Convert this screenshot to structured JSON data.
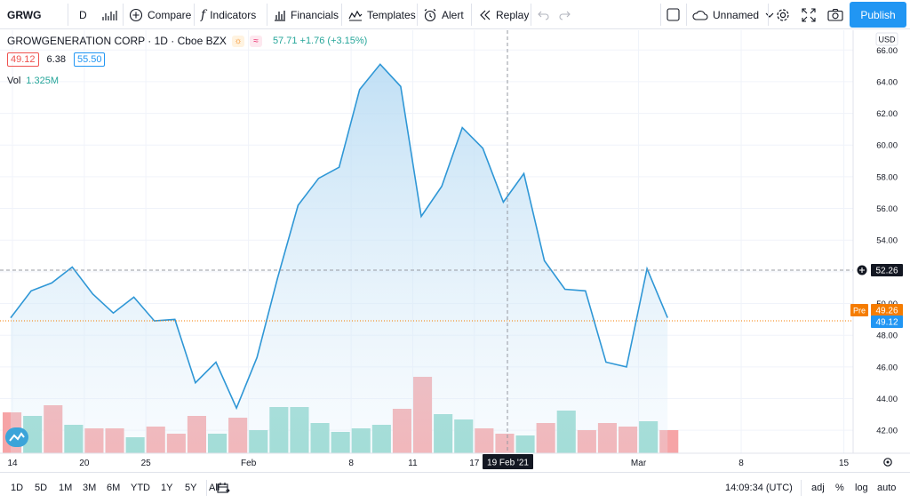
{
  "toolbar": {
    "symbol": "GRWG",
    "interval": "D",
    "compare": "Compare",
    "indicators": "Indicators",
    "financials": "Financials",
    "templates": "Templates",
    "alert": "Alert",
    "replay": "Replay",
    "layout_name": "Unnamed",
    "publish": "Publish"
  },
  "legend": {
    "title": "GROWGENERATION CORP · 1D · Cboe BZX",
    "sun_badge": "☼",
    "wave_badge": "≈",
    "price": "57.71 +1.76 (+3.15%)",
    "bid": "49.12",
    "spread": "6.38",
    "ask": "55.50",
    "vol_label": "Vol",
    "vol_value": "1.325M"
  },
  "colors": {
    "line": "#2f97d6",
    "area_top": "#cfe6f7",
    "vol_up": "#8ed6cb",
    "vol_down": "#f6a4a6",
    "crosshair_label": "#131722",
    "pre_label": "#f57c00",
    "last_label": "#2196f3"
  },
  "axis": {
    "currency": "USD",
    "crosshair_price": "52.26",
    "pre_label": "Pre",
    "pre_price": "49.26",
    "last_price": "49.12",
    "crosshair_date": "19 Feb '21"
  },
  "chart_data": {
    "type": "line",
    "title": "",
    "ylim": [
      41,
      66.8
    ],
    "y_ticks": [
      42,
      44,
      46,
      48,
      50,
      52,
      54,
      56,
      58,
      60,
      62,
      64,
      66
    ],
    "x_tick_labels": [
      {
        "label": "14",
        "bar": 0
      },
      {
        "label": "20",
        "bar": 3.5
      },
      {
        "label": "25",
        "bar": 6.5
      },
      {
        "label": "Feb",
        "bar": 11.5
      },
      {
        "label": "8",
        "bar": 16.5
      },
      {
        "label": "11",
        "bar": 19.5
      },
      {
        "label": "17",
        "bar": 22.5
      },
      {
        "label": "Mar",
        "bar": 30.5
      },
      {
        "label": "8",
        "bar": 35.5
      },
      {
        "label": "15",
        "bar": 40.5
      }
    ],
    "series": [
      {
        "values": [
          49.1,
          50.8,
          51.3,
          52.3,
          50.6,
          49.4,
          50.4,
          48.9,
          49.0,
          45.0,
          46.3,
          43.4,
          46.6,
          51.6,
          56.2,
          57.9,
          58.6,
          63.5,
          65.1,
          63.7,
          55.5,
          57.4,
          61.1,
          59.8,
          56.4,
          58.2,
          52.7,
          50.9,
          50.8,
          46.3,
          46.0,
          52.2,
          49.1
        ]
      }
    ],
    "volume_colors": [
      "down",
      "up",
      "down",
      "up",
      "down",
      "down",
      "up",
      "down",
      "down",
      "down",
      "up",
      "down",
      "up",
      "up",
      "up",
      "up",
      "up",
      "up",
      "up",
      "down",
      "down",
      "up",
      "up",
      "down",
      "down",
      "up",
      "down",
      "up",
      "down",
      "down",
      "down",
      "up",
      "down"
    ],
    "volume_heights": [
      0.23,
      0.21,
      0.27,
      0.16,
      0.14,
      0.14,
      0.09,
      0.15,
      0.11,
      0.21,
      0.11,
      0.2,
      0.13,
      0.26,
      0.26,
      0.17,
      0.12,
      0.14,
      0.16,
      0.25,
      0.43,
      0.22,
      0.19,
      0.14,
      0.11,
      0.1,
      0.17,
      0.24,
      0.13,
      0.17,
      0.15,
      0.18,
      0.13
    ]
  },
  "time_axis_settings_icon": "gear-icon",
  "bottom": {
    "ranges": [
      "1D",
      "5D",
      "1M",
      "3M",
      "6M",
      "YTD",
      "1Y",
      "5Y",
      "All"
    ],
    "clock": "14:09:34 (UTC)",
    "adj": "adj",
    "percent": "%",
    "log": "log",
    "auto": "auto"
  }
}
